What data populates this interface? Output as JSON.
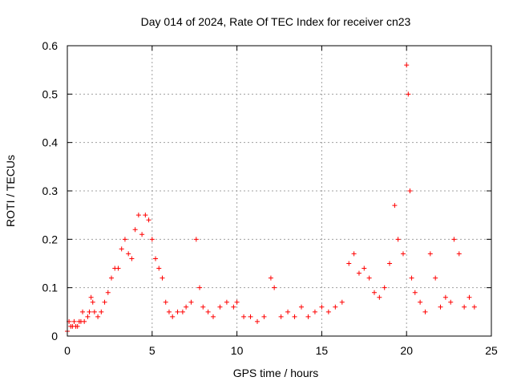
{
  "chart_data": {
    "type": "scatter",
    "title": "Day 014 of 2024, Rate Of TEC Index for receiver cn23",
    "xlabel": "GPS time / hours",
    "ylabel": "ROTI / TECUs",
    "xlim": [
      0,
      25
    ],
    "ylim": [
      0,
      0.6
    ],
    "x_ticks": [
      "0",
      "5",
      "10",
      "15",
      "20",
      "25"
    ],
    "y_ticks": [
      "0",
      "0.1",
      "0.2",
      "0.3",
      "0.4",
      "0.5",
      "0.6"
    ],
    "grid": true,
    "marker": "+",
    "color": "#ff0000",
    "series": [
      {
        "x": [
          0.0,
          0.1,
          0.2,
          0.3,
          0.4,
          0.5,
          0.6,
          0.7,
          0.8,
          0.9,
          1.0,
          1.2,
          1.3,
          1.4,
          1.5,
          1.6,
          1.8,
          2.0,
          2.2,
          2.4,
          2.6,
          2.8,
          3.0,
          3.2,
          3.4,
          3.6,
          3.8,
          4.0,
          4.2,
          4.4,
          4.6,
          4.8,
          5.0,
          5.2,
          5.4,
          5.6,
          5.8,
          6.0,
          6.2,
          6.5,
          6.8,
          7.0,
          7.3,
          7.6,
          7.8,
          8.0,
          8.3,
          8.6,
          9.0,
          9.4,
          9.8,
          10.0,
          10.4,
          10.8,
          11.2,
          11.6,
          12.0,
          12.2,
          12.6,
          13.0,
          13.4,
          13.8,
          14.2,
          14.6,
          15.0,
          15.4,
          15.8,
          16.2,
          16.6,
          16.9,
          17.2,
          17.5,
          17.8,
          18.1,
          18.4,
          18.7,
          19.0,
          19.3,
          19.5,
          19.8,
          20.0,
          20.1,
          20.2,
          20.3,
          20.5,
          20.8,
          21.1,
          21.4,
          21.7,
          22.0,
          22.3,
          22.6,
          22.8,
          23.1,
          23.4,
          23.7,
          24.0
        ],
        "y": [
          0.01,
          0.03,
          0.02,
          0.02,
          0.03,
          0.02,
          0.02,
          0.03,
          0.03,
          0.05,
          0.03,
          0.04,
          0.05,
          0.08,
          0.07,
          0.05,
          0.04,
          0.05,
          0.07,
          0.09,
          0.12,
          0.14,
          0.14,
          0.18,
          0.2,
          0.17,
          0.16,
          0.22,
          0.25,
          0.21,
          0.25,
          0.24,
          0.2,
          0.16,
          0.14,
          0.12,
          0.07,
          0.05,
          0.04,
          0.05,
          0.05,
          0.06,
          0.07,
          0.2,
          0.1,
          0.06,
          0.05,
          0.04,
          0.06,
          0.07,
          0.06,
          0.07,
          0.04,
          0.04,
          0.03,
          0.04,
          0.12,
          0.1,
          0.04,
          0.05,
          0.04,
          0.06,
          0.04,
          0.05,
          0.06,
          0.05,
          0.06,
          0.07,
          0.15,
          0.17,
          0.13,
          0.14,
          0.12,
          0.09,
          0.08,
          0.1,
          0.15,
          0.27,
          0.2,
          0.17,
          0.56,
          0.5,
          0.3,
          0.12,
          0.09,
          0.07,
          0.05,
          0.17,
          0.12,
          0.06,
          0.08,
          0.07,
          0.2,
          0.17,
          0.06,
          0.08,
          0.06
        ]
      }
    ]
  }
}
